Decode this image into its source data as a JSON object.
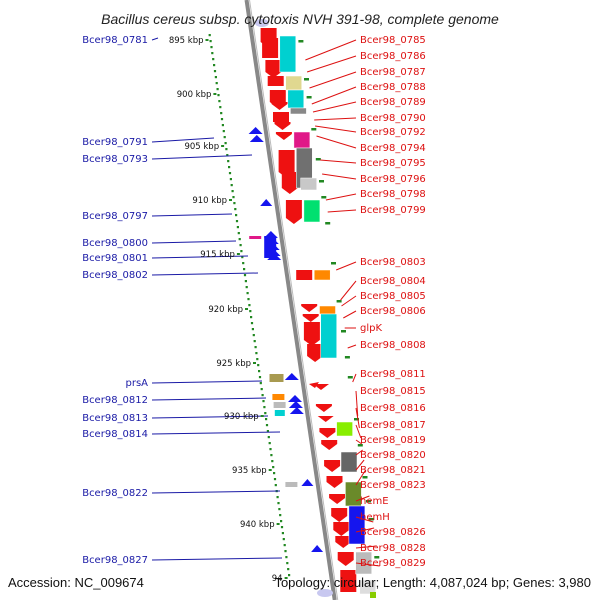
{
  "title": "Bacillus cereus subsp. cytotoxis NVH 391-98, complete genome",
  "footer": {
    "accession": "Accession: NC_009674",
    "stats": "Topology: circular; Length: 4,087,024 bp; Genes: 3,980"
  },
  "kbp_labels": [
    "895 kbp",
    "900 kbp",
    "905 kbp",
    "910 kbp",
    "915 kbp",
    "920 kbp",
    "925 kbp",
    "930 kbp",
    "935 kbp",
    "940 kbp",
    "94"
  ],
  "left_genes": [
    "Bcer98_0781",
    "Bcer98_0791",
    "Bcer98_0793",
    "Bcer98_0797",
    "Bcer98_0800",
    "Bcer98_0801",
    "Bcer98_0802",
    "prsA",
    "Bcer98_0812",
    "Bcer98_0813",
    "Bcer98_0814",
    "Bcer98_0822",
    "Bcer98_0827"
  ],
  "right_genes": [
    "Bcer98_0785",
    "Bcer98_0786",
    "Bcer98_0787",
    "Bcer98_0788",
    "Bcer98_0789",
    "Bcer98_0790",
    "Bcer98_0792",
    "Bcer98_0794",
    "Bcer98_0795",
    "Bcer98_0796",
    "Bcer98_0798",
    "Bcer98_0799",
    "Bcer98_0803",
    "Bcer98_0804",
    "Bcer98_0805",
    "Bcer98_0806",
    "glpK",
    "Bcer98_0808",
    "Bcer98_0811",
    "Bcer98_0815",
    "Bcer98_0816",
    "Bcer98_0817",
    "Bcer98_0819",
    "Bcer98_0820",
    "Bcer98_0821",
    "Bcer98_0823",
    "hemE",
    "hemH",
    "Bcer98_0826",
    "Bcer98_0828",
    "Bcer98_0829"
  ],
  "colors": {
    "forward_gene": "#ee1111",
    "reverse_gene": "#1515ee",
    "backbone": "#888888",
    "gc_skew": "#228822",
    "left_label": "#1a1aa6",
    "right_label": "#dd1111"
  }
}
